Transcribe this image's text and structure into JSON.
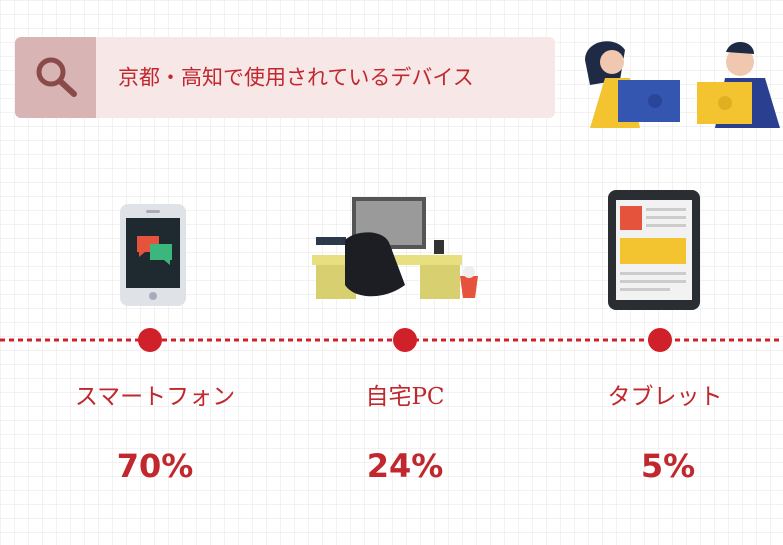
{
  "header": {
    "title": "京都・高知で使用されているデバイス"
  },
  "items": [
    {
      "label": "スマートフォン",
      "value": "70%"
    },
    {
      "label": "自宅PC",
      "value": "24%"
    },
    {
      "label": "タブレット",
      "value": "5%"
    }
  ]
}
